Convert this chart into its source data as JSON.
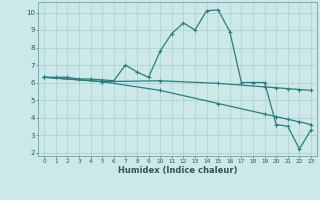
{
  "title": "",
  "xlabel": "Humidex (Indice chaleur)",
  "background_color": "#cce8e8",
  "grid_color": "#b0d8d8",
  "line_color": "#2d7d7d",
  "xlim": [
    -0.5,
    23.5
  ],
  "ylim": [
    1.8,
    10.6
  ],
  "yticks": [
    2,
    3,
    4,
    5,
    6,
    7,
    8,
    9,
    10
  ],
  "xticks": [
    0,
    1,
    2,
    3,
    4,
    5,
    6,
    7,
    8,
    9,
    10,
    11,
    12,
    13,
    14,
    15,
    16,
    17,
    18,
    19,
    20,
    21,
    22,
    23
  ],
  "series": [
    {
      "x": [
        0,
        1,
        2,
        3,
        4,
        5,
        6,
        7,
        8,
        9,
        10,
        11,
        12,
        13,
        14,
        15,
        16,
        17,
        18,
        19,
        20,
        21,
        22,
        23
      ],
      "y": [
        6.3,
        6.3,
        6.3,
        6.2,
        6.2,
        6.15,
        6.1,
        7.0,
        6.6,
        6.3,
        7.8,
        8.8,
        9.4,
        9.0,
        10.1,
        10.15,
        8.9,
        6.0,
        6.0,
        6.0,
        3.6,
        3.5,
        2.2,
        3.3
      ]
    },
    {
      "x": [
        0,
        5,
        10,
        15,
        19,
        20,
        21,
        22,
        23
      ],
      "y": [
        6.3,
        6.05,
        5.55,
        4.8,
        4.2,
        4.05,
        3.9,
        3.75,
        3.6
      ]
    },
    {
      "x": [
        0,
        5,
        10,
        15,
        19,
        20,
        21,
        22,
        23
      ],
      "y": [
        6.3,
        6.05,
        6.1,
        5.95,
        5.75,
        5.7,
        5.65,
        5.6,
        5.55
      ]
    }
  ]
}
